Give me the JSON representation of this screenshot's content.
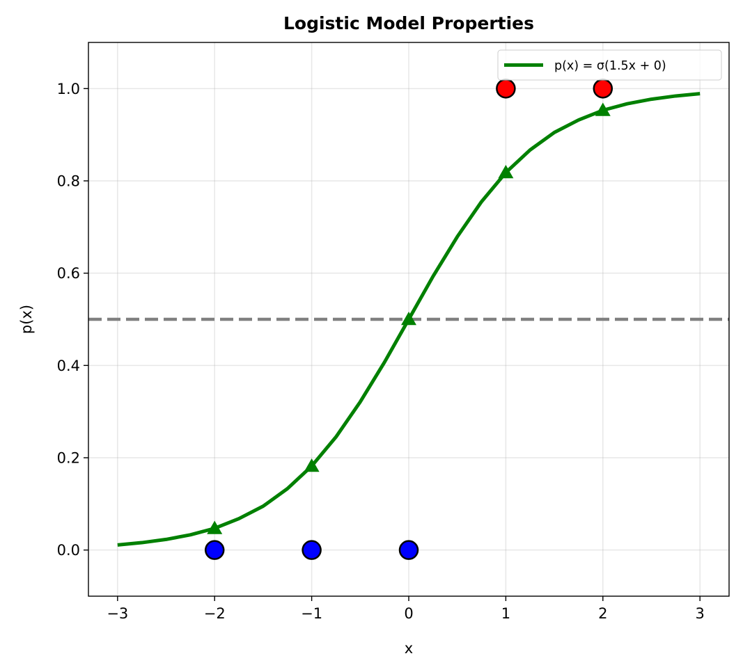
{
  "chart_data": {
    "type": "line",
    "title": "Logistic Model Properties",
    "xlabel": "x",
    "ylabel": "p(x)",
    "xlim": [
      -3.3,
      3.3
    ],
    "ylim": [
      -0.1,
      1.1
    ],
    "x_ticks": [
      -3,
      -2,
      -1,
      0,
      1,
      2,
      3
    ],
    "x_tick_labels": [
      "−3",
      "−2",
      "−1",
      "0",
      "1",
      "2",
      "3"
    ],
    "y_ticks": [
      0.0,
      0.2,
      0.4,
      0.6,
      0.8,
      1.0
    ],
    "y_tick_labels": [
      "0.0",
      "0.2",
      "0.4",
      "0.6",
      "0.8",
      "1.0"
    ],
    "grid": true,
    "legend_position": "top-right",
    "threshold": {
      "y": 0.5,
      "color": "#808080",
      "style": "dashed"
    },
    "curve": {
      "name": "p(x) = σ(1.5x + 0)",
      "color": "#008000",
      "x": [
        -3.0,
        -2.75,
        -2.5,
        -2.25,
        -2.0,
        -1.75,
        -1.5,
        -1.25,
        -1.0,
        -0.75,
        -0.5,
        -0.25,
        0.0,
        0.25,
        0.5,
        0.75,
        1.0,
        1.25,
        1.5,
        1.75,
        2.0,
        2.25,
        2.5,
        2.75,
        3.0
      ],
      "y": [
        0.011,
        0.016,
        0.023,
        0.033,
        0.047,
        0.068,
        0.095,
        0.133,
        0.182,
        0.245,
        0.321,
        0.407,
        0.5,
        0.593,
        0.679,
        0.755,
        0.818,
        0.867,
        0.905,
        0.932,
        0.953,
        0.967,
        0.977,
        0.984,
        0.989
      ]
    },
    "curve_markers": {
      "color": "#008000",
      "shape": "triangle",
      "x": [
        -2,
        -1,
        0,
        1,
        2
      ],
      "y": [
        0.047,
        0.182,
        0.5,
        0.818,
        0.953
      ]
    },
    "points_class_0": {
      "color": "#0000ff",
      "x": [
        -2,
        -1,
        0
      ],
      "y": [
        0,
        0,
        0
      ]
    },
    "points_class_1": {
      "color": "#ff0000",
      "x": [
        1,
        2
      ],
      "y": [
        1,
        1
      ]
    }
  }
}
